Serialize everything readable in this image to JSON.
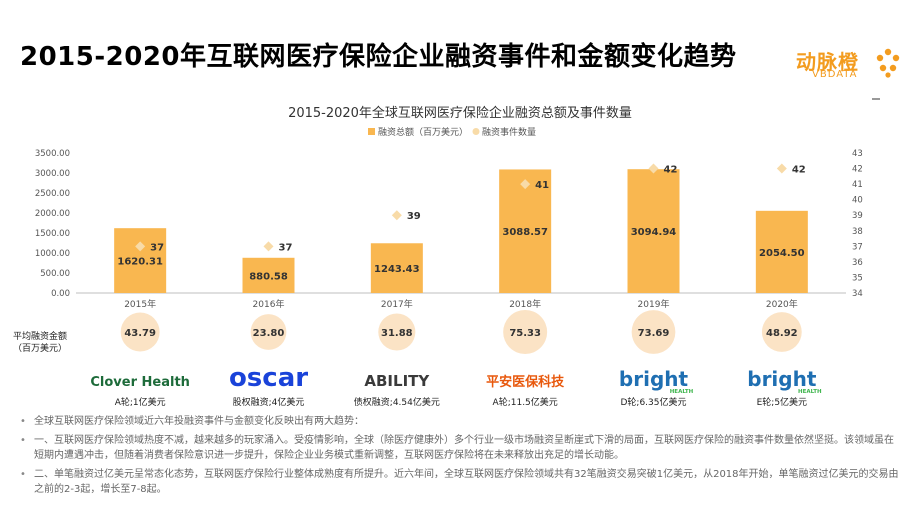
{
  "page": {
    "title": "2015-2020年互联网医疗保险企业融资事件和金额变化趋势",
    "logo": {
      "cn": "动脉橙",
      "en": "VBDATA"
    }
  },
  "chart_data": {
    "type": "bar",
    "title": "2015-2020年全球互联网医疗保险企业融资总额及事件数量",
    "categories": [
      "2015年",
      "2016年",
      "2017年",
      "2018年",
      "2019年",
      "2020年"
    ],
    "series": [
      {
        "name": "融资总额（百万美元）",
        "type": "bar",
        "axis": "left",
        "color": "#f9b750",
        "values": [
          1620.31,
          880.58,
          1243.43,
          3088.57,
          3094.94,
          2054.5
        ],
        "labels": [
          "1620.31",
          "880.58",
          "1243.43",
          "3088.57",
          "3094.94",
          "2054.50"
        ]
      },
      {
        "name": "融资事件数量",
        "type": "scatter",
        "axis": "right",
        "color": "#f8dba8",
        "values": [
          37,
          37,
          39,
          41,
          42,
          42
        ],
        "labels": [
          "37",
          "37",
          "39",
          "41",
          "42",
          "42"
        ]
      }
    ],
    "ylim_left": [
      0,
      3500
    ],
    "left_ticks": [
      "0.00",
      "500.00",
      "1000.00",
      "1500.00",
      "2000.00",
      "2500.00",
      "3000.00",
      "3500.00"
    ],
    "ylim_right": [
      34,
      43
    ],
    "right_ticks": [
      "34",
      "35",
      "36",
      "37",
      "38",
      "39",
      "40",
      "41",
      "42",
      "43"
    ],
    "legend_position": "top",
    "grid": false,
    "avg": {
      "label_line1": "平均融资金额",
      "label_line2": "（百万美元）",
      "values": [
        43.79,
        23.8,
        31.88,
        75.33,
        73.69,
        48.92
      ],
      "labels": [
        "43.79",
        "23.80",
        "31.88",
        "75.33",
        "73.69",
        "48.92"
      ]
    },
    "companies": [
      {
        "logo": "Clover Health",
        "caption": "",
        "color": "#1d6b3a"
      },
      {
        "logo": "oscar",
        "caption": "股权融资;4亿美元",
        "color": "#1a43d9"
      },
      {
        "logo": "ABILITY",
        "caption": "债权融资;4.54亿美元",
        "color": "#3a3a3a"
      },
      {
        "logo": "平安医保科技",
        "caption": "A轮;11.5亿美元",
        "color": "#e8580c"
      },
      {
        "logo": "bright",
        "sub": "HEALTH",
        "caption": "D轮;6.35亿美元",
        "color": "#1f6fb2"
      },
      {
        "logo": "bright",
        "sub": "HEALTH",
        "caption": "E轮;5亿美元",
        "color": "#1f6fb2"
      }
    ],
    "company_first_caption": "A轮;1亿美元"
  },
  "bullets": [
    "全球互联网医疗保险领域近六年投融资事件与金额变化反映出有两大趋势：",
    "一、互联网医疗保险领域热度不减，越来越多的玩家涌入。受疫情影响，全球（除医疗健康外）多个行业一级市场融资呈断崖式下滑的局面，互联网医疗保险的融资事件数量依然坚挺。该领域虽在短期内遭遇冲击，但随着消费者保险意识进一步提升，保险企业业务模式重新调整，互联网医疗保险将在未来释放出充足的增长动能。",
    "二、单笔融资过亿美元呈常态化态势，互联网医疗保险行业整体成熟度有所提升。近六年间，全球互联网医疗保险领域共有32笔融资交易突破1亿美元，从2018年开始，单笔融资过亿美元的交易由之前的2-3起，增长至7-8起。"
  ]
}
